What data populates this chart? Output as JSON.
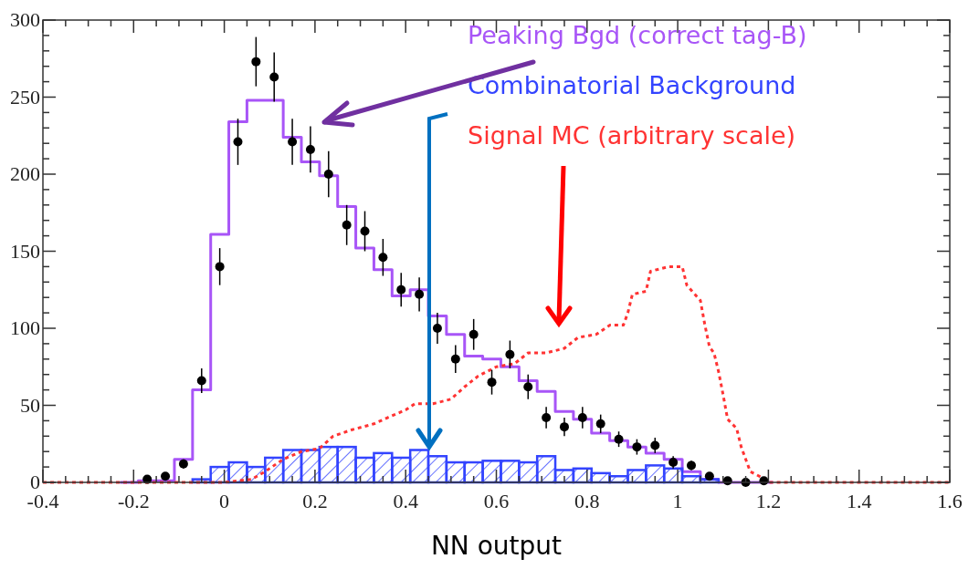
{
  "chart_data": {
    "type": "histogram",
    "xlabel": "NN output",
    "legend": "top right",
    "grid": false,
    "xlim": [
      -0.4,
      1.6
    ],
    "ylim": [
      0,
      300
    ],
    "xticks": [
      -0.4,
      {
        "value": -0.35,
        "label": null
      },
      {
        "value": -0.3,
        "label": null
      },
      {
        "value": -0.25,
        "label": null
      },
      -0.2,
      {
        "value": -0.15,
        "label": null
      },
      {
        "value": -0.1,
        "label": null
      },
      {
        "value": -0.05,
        "label": null
      },
      0,
      {
        "value": 0.05,
        "label": null
      },
      {
        "value": 0.1,
        "label": null
      },
      {
        "value": 0.15,
        "label": null
      },
      0.2,
      {
        "value": 0.25,
        "label": null
      },
      {
        "value": 0.3,
        "label": null
      },
      {
        "value": 0.35,
        "label": null
      },
      0.4,
      {
        "value": 0.45,
        "label": null
      },
      {
        "value": 0.5,
        "label": null
      },
      {
        "value": 0.55,
        "label": null
      },
      0.6,
      {
        "value": 0.65,
        "label": null
      },
      {
        "value": 0.7,
        "label": null
      },
      {
        "value": 0.75,
        "label": null
      },
      0.8,
      {
        "value": 0.85,
        "label": null
      },
      {
        "value": 0.9,
        "label": null
      },
      {
        "value": 0.95,
        "label": null
      },
      1,
      {
        "value": 1.05,
        "label": null
      },
      {
        "value": 1.1,
        "label": null
      },
      {
        "value": 1.15,
        "label": null
      },
      1.2,
      {
        "value": 1.25,
        "label": null
      },
      {
        "value": 1.3,
        "label": null
      },
      {
        "value": 1.35,
        "label": null
      },
      1.4,
      {
        "value": 1.45,
        "label": null
      },
      {
        "value": 1.5,
        "label": null
      },
      {
        "value": 1.55,
        "label": null
      },
      1.6
    ],
    "yticks": [
      0,
      {
        "value": 10,
        "label": null
      },
      {
        "value": 20,
        "label": null
      },
      {
        "value": 30,
        "label": null
      },
      {
        "value": 40,
        "label": null
      },
      50,
      {
        "value": 60,
        "label": null
      },
      {
        "value": 70,
        "label": null
      },
      {
        "value": 80,
        "label": null
      },
      {
        "value": 90,
        "label": null
      },
      100,
      {
        "value": 110,
        "label": null
      },
      {
        "value": 120,
        "label": null
      },
      {
        "value": 130,
        "label": null
      },
      {
        "value": 140,
        "label": null
      },
      150,
      {
        "value": 160,
        "label": null
      },
      {
        "value": 170,
        "label": null
      },
      {
        "value": 180,
        "label": null
      },
      {
        "value": 190,
        "label": null
      },
      200,
      {
        "value": 210,
        "label": null
      },
      {
        "value": 220,
        "label": null
      },
      {
        "value": 230,
        "label": null
      },
      {
        "value": 240,
        "label": null
      },
      250,
      {
        "value": 260,
        "label": null
      },
      {
        "value": 270,
        "label": null
      },
      {
        "value": 280,
        "label": null
      },
      {
        "value": 290,
        "label": null
      },
      300
    ],
    "bins": [
      -0.23,
      -0.19,
      -0.15,
      -0.11,
      -0.07,
      -0.03,
      0.01,
      0.05,
      0.09,
      0.13,
      0.17,
      0.21,
      0.25,
      0.29,
      0.33,
      0.37,
      0.41,
      0.45,
      0.49,
      0.53,
      0.57,
      0.61,
      0.65,
      0.69,
      0.73,
      0.77,
      0.81,
      0.85,
      0.89,
      0.93,
      0.97,
      1.01,
      1.05,
      1.09,
      1.13,
      1.17,
      1.21
    ],
    "series": [
      {
        "name": "Peaking Bgd (correct tag-B)",
        "type": "step",
        "color": "#a855f7",
        "x": [
          -0.23,
          -0.19,
          -0.15,
          -0.11,
          -0.07,
          -0.03,
          0.01,
          0.05,
          0.09,
          0.13,
          0.17,
          0.21,
          0.25,
          0.29,
          0.33,
          0.37,
          0.41,
          0.45,
          0.49,
          0.53,
          0.57,
          0.61,
          0.65,
          0.69,
          0.73,
          0.77,
          0.81,
          0.85,
          0.89,
          0.93,
          0.97,
          1.01,
          1.05,
          1.09,
          1.13,
          1.17,
          1.21
        ],
        "values": [
          0,
          1,
          1,
          15,
          60,
          161,
          234,
          248,
          248,
          224,
          208,
          199,
          179,
          152,
          138,
          121,
          125,
          108,
          96,
          82,
          80,
          75,
          66,
          59,
          46,
          41,
          32,
          27,
          23,
          19,
          15,
          7,
          2,
          0,
          0,
          0,
          0
        ]
      },
      {
        "name": "Combinatorial Background",
        "color": "#3344ff",
        "values": [
          0,
          0,
          0,
          0,
          2,
          10,
          13,
          10,
          16,
          21,
          21,
          23,
          23,
          16,
          19,
          16,
          21,
          17,
          13,
          13,
          14,
          14,
          13,
          17,
          8,
          9,
          6,
          4,
          8,
          11,
          9,
          4,
          2,
          0,
          0,
          0
        ]
      },
      {
        "name": "Signal MC (arbitrary scale)",
        "type": "line",
        "color": "#ff3333",
        "line_style": "dotted",
        "x": [
          -0.4,
          0.0,
          0.06,
          0.09,
          0.13,
          0.17,
          0.21,
          0.24,
          0.28,
          0.33,
          0.36,
          0.4,
          0.42,
          0.46,
          0.5,
          0.53,
          0.56,
          0.6,
          0.64,
          0.67,
          0.71,
          0.75,
          0.78,
          0.82,
          0.85,
          0.88,
          0.89,
          0.9,
          0.93,
          0.94,
          0.98,
          1.01,
          1.02,
          1.05,
          1.06,
          1.07,
          1.08,
          1.09,
          1.1,
          1.11,
          1.13,
          1.14,
          1.15,
          1.16,
          1.18,
          1.2,
          1.6
        ],
        "values": [
          0,
          0,
          2,
          7,
          15,
          20,
          22,
          30,
          34,
          38,
          42,
          47,
          51,
          51,
          54,
          62,
          69,
          75,
          77,
          84,
          84,
          87,
          94,
          96,
          102,
          102,
          110,
          122,
          124,
          137,
          140,
          140,
          128,
          118,
          102,
          88,
          84,
          72,
          57,
          41,
          35,
          23,
          15,
          7,
          4,
          0,
          0
        ]
      },
      {
        "type": "scatter",
        "color": "#000000",
        "x": [
          -0.17,
          -0.13,
          -0.09,
          -0.05,
          -0.01,
          0.03,
          0.07,
          0.11,
          0.15,
          0.19,
          0.23,
          0.27,
          0.31,
          0.35,
          0.39,
          0.43,
          0.47,
          0.51,
          0.55,
          0.59,
          0.63,
          0.67,
          0.71,
          0.75,
          0.79,
          0.83,
          0.87,
          0.91,
          0.95,
          0.99,
          1.03,
          1.07,
          1.11,
          1.15,
          1.19
        ],
        "values": [
          2,
          4,
          12,
          66,
          140,
          221,
          273,
          263,
          221,
          216,
          200,
          167,
          163,
          146,
          125,
          122,
          100,
          80,
          96,
          65,
          83,
          62,
          42,
          36,
          42,
          38,
          28,
          23,
          24,
          13,
          11,
          4,
          1,
          0,
          1
        ],
        "errors": [
          1,
          2,
          3,
          8,
          12,
          15,
          16,
          16,
          15,
          15,
          15,
          13,
          13,
          12,
          11,
          11,
          10,
          9,
          10,
          8,
          9,
          8,
          7,
          6,
          7,
          6,
          5,
          5,
          5,
          4,
          3,
          2,
          1,
          null,
          1
        ]
      }
    ]
  }
}
